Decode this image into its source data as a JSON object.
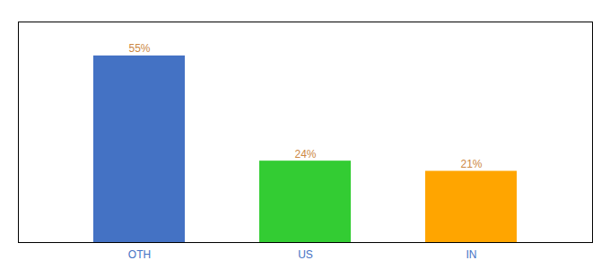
{
  "chart_data": {
    "type": "bar",
    "categories": [
      "OTH",
      "US",
      "IN"
    ],
    "values": [
      55,
      24,
      21
    ],
    "value_labels": [
      "55%",
      "24%",
      "21%"
    ],
    "colors": [
      "#4472C4",
      "#33CC33",
      "#FFA500"
    ],
    "data_labels": true,
    "ylim": [
      0,
      65
    ],
    "tick_labels": "x",
    "grid": false
  }
}
